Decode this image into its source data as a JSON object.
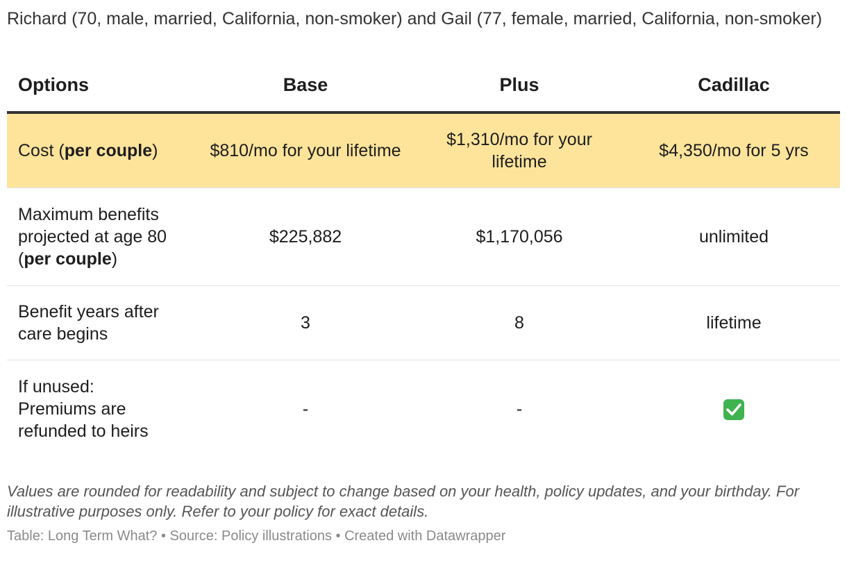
{
  "subtitle": "Richard (70, male, married, California, non-smoker) and Gail (77, female, married, California, non-smoker)",
  "chart_data": {
    "type": "table",
    "columns": [
      "Options",
      "Base",
      "Plus",
      "Cadillac"
    ],
    "rows": [
      {
        "label_parts": [
          "Cost (",
          "per couple",
          ")"
        ],
        "label": "Cost (per couple)",
        "cells": [
          "$810/mo for your lifetime",
          "$1,310/mo for your lifetime",
          "$4,350/mo for 5 yrs"
        ],
        "highlight": true,
        "highlight_color": "#fee49b"
      },
      {
        "label_parts": [
          "Maximum benefits projected at age 80 (",
          "per couple",
          ")"
        ],
        "label": "Maximum benefits projected at age 80 (per couple)",
        "cells": [
          "$225,882",
          "$1,170,056",
          "unlimited"
        ]
      },
      {
        "label_parts": [
          "Benefit years after care begins",
          "",
          ""
        ],
        "label": "Benefit years after care begins",
        "cells": [
          "3",
          "8",
          "lifetime"
        ]
      },
      {
        "label_parts": [
          "If unused: Premiums are refunded to heirs",
          "",
          ""
        ],
        "label": "If unused: Premiums are refunded to heirs",
        "cells": [
          "-",
          "-",
          "check-mark-icon"
        ]
      }
    ]
  },
  "notes": "Values are rounded for readability and subject to change based on your health, policy updates, and your birthday. For illustrative purposes only. Refer to your policy for exact details.",
  "source_line": "Table: Long Term What? • Source: Policy illustrations • Created with Datawrapper",
  "colors": {
    "highlight": "#fee49b",
    "header_rule": "#333333",
    "check": "#3fb34f"
  }
}
